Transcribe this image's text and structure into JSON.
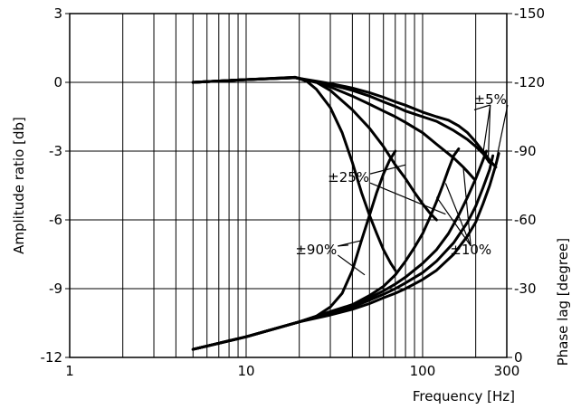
{
  "chart_data": {
    "type": "line",
    "x_scale": "log",
    "grid": true,
    "xlim": [
      1,
      300
    ],
    "ylim_left": [
      -12,
      3
    ],
    "ylim_right": [
      0,
      -150
    ],
    "xlabel": "Frequency [Hz]",
    "ylabel_left": "Amplitude ratio [db]",
    "ylabel_right": "Phase lag [degree]",
    "x_ticks": [
      {
        "value": 1,
        "label": "1"
      },
      {
        "value": 10,
        "label": "10"
      },
      {
        "value": 100,
        "label": "100"
      },
      {
        "value": 300,
        "label": "300"
      }
    ],
    "y_ticks_left": [
      {
        "value": 3,
        "label": "3"
      },
      {
        "value": 0,
        "label": "0"
      },
      {
        "value": -3,
        "label": "-3"
      },
      {
        "value": -6,
        "label": "-6"
      },
      {
        "value": -9,
        "label": "-9"
      },
      {
        "value": -12,
        "label": "-12"
      }
    ],
    "y_ticks_right": [
      {
        "value": -150,
        "label": "-150"
      },
      {
        "value": -120,
        "label": "-120"
      },
      {
        "value": -90,
        "label": "-90"
      },
      {
        "value": -60,
        "label": "-60"
      },
      {
        "value": -30,
        "label": "-30"
      },
      {
        "value": 0,
        "label": "0"
      }
    ],
    "series": [
      {
        "axis": "left",
        "points": [
          [
            5,
            0
          ],
          [
            10,
            0.12
          ],
          [
            15,
            0.18
          ],
          [
            19,
            0.22
          ],
          [
            22,
            0.05
          ],
          [
            25,
            -0.3
          ],
          [
            30,
            -1.1
          ],
          [
            35,
            -2.2
          ],
          [
            40,
            -3.5
          ],
          [
            45,
            -4.8
          ],
          [
            50,
            -5.8
          ],
          [
            55,
            -6.6
          ],
          [
            60,
            -7.3
          ],
          [
            66,
            -7.9
          ],
          [
            70,
            -8.2
          ]
        ]
      },
      {
        "axis": "left",
        "points": [
          [
            5,
            0
          ],
          [
            10,
            0.12
          ],
          [
            19,
            0.22
          ],
          [
            25,
            0
          ],
          [
            30,
            -0.35
          ],
          [
            40,
            -1.2
          ],
          [
            50,
            -2.0
          ],
          [
            60,
            -2.8
          ],
          [
            70,
            -3.6
          ],
          [
            80,
            -4.2
          ],
          [
            90,
            -4.8
          ],
          [
            100,
            -5.3
          ],
          [
            110,
            -5.7
          ],
          [
            120,
            -6.0
          ]
        ]
      },
      {
        "axis": "left",
        "points": [
          [
            5,
            0
          ],
          [
            10,
            0.12
          ],
          [
            19,
            0.2
          ],
          [
            25,
            0
          ],
          [
            30,
            -0.2
          ],
          [
            40,
            -0.6
          ],
          [
            50,
            -0.95
          ],
          [
            60,
            -1.25
          ],
          [
            70,
            -1.5
          ],
          [
            80,
            -1.75
          ],
          [
            100,
            -2.2
          ],
          [
            120,
            -2.7
          ],
          [
            150,
            -3.3
          ],
          [
            170,
            -3.7
          ],
          [
            180,
            -3.9
          ],
          [
            190,
            -4.1
          ],
          [
            195,
            -4.2
          ]
        ]
      },
      {
        "axis": "left",
        "points": [
          [
            5,
            0
          ],
          [
            10,
            0.12
          ],
          [
            19,
            0.2
          ],
          [
            25,
            0
          ],
          [
            30,
            -0.1
          ],
          [
            40,
            -0.35
          ],
          [
            50,
            -0.6
          ],
          [
            60,
            -0.85
          ],
          [
            70,
            -1.05
          ],
          [
            80,
            -1.25
          ],
          [
            100,
            -1.5
          ],
          [
            120,
            -1.7
          ],
          [
            150,
            -2.1
          ],
          [
            180,
            -2.5
          ],
          [
            200,
            -2.8
          ],
          [
            220,
            -3.1
          ],
          [
            240,
            -3.5
          ]
        ]
      },
      {
        "axis": "left",
        "points": [
          [
            5,
            0
          ],
          [
            10,
            0.12
          ],
          [
            19,
            0.2
          ],
          [
            25,
            0.05
          ],
          [
            30,
            -0.05
          ],
          [
            40,
            -0.25
          ],
          [
            50,
            -0.45
          ],
          [
            60,
            -0.65
          ],
          [
            70,
            -0.85
          ],
          [
            80,
            -1.0
          ],
          [
            100,
            -1.3
          ],
          [
            120,
            -1.5
          ],
          [
            140,
            -1.65
          ],
          [
            160,
            -1.9
          ],
          [
            180,
            -2.2
          ],
          [
            200,
            -2.6
          ],
          [
            220,
            -3.0
          ],
          [
            240,
            -3.4
          ],
          [
            260,
            -3.7
          ]
        ]
      },
      {
        "axis": "right",
        "points": [
          [
            5,
            -3.5
          ],
          [
            10,
            -9
          ],
          [
            20,
            -15.5
          ],
          [
            25,
            -18
          ],
          [
            30,
            -22
          ],
          [
            35,
            -28
          ],
          [
            40,
            -38
          ],
          [
            45,
            -51
          ],
          [
            50,
            -62
          ],
          [
            55,
            -72
          ],
          [
            60,
            -80
          ],
          [
            65,
            -86
          ],
          [
            70,
            -90
          ]
        ]
      },
      {
        "axis": "right",
        "points": [
          [
            5,
            -3.5
          ],
          [
            10,
            -9
          ],
          [
            20,
            -15.5
          ],
          [
            30,
            -20
          ],
          [
            40,
            -23
          ],
          [
            50,
            -27
          ],
          [
            60,
            -31
          ],
          [
            70,
            -36
          ],
          [
            80,
            -42
          ],
          [
            90,
            -48
          ],
          [
            100,
            -54
          ],
          [
            110,
            -61
          ],
          [
            120,
            -68
          ],
          [
            130,
            -75
          ],
          [
            140,
            -82
          ],
          [
            150,
            -88
          ],
          [
            160,
            -91
          ]
        ]
      },
      {
        "axis": "right",
        "points": [
          [
            5,
            -3.5
          ],
          [
            10,
            -9
          ],
          [
            20,
            -15.5
          ],
          [
            30,
            -19.5
          ],
          [
            40,
            -23
          ],
          [
            50,
            -26
          ],
          [
            60,
            -29
          ],
          [
            70,
            -32
          ],
          [
            80,
            -35
          ],
          [
            100,
            -41
          ],
          [
            120,
            -47
          ],
          [
            140,
            -54
          ],
          [
            160,
            -62
          ],
          [
            180,
            -70
          ],
          [
            200,
            -78
          ],
          [
            220,
            -86
          ],
          [
            230,
            -90
          ]
        ]
      },
      {
        "axis": "right",
        "points": [
          [
            5,
            -3.5
          ],
          [
            10,
            -9
          ],
          [
            20,
            -15.5
          ],
          [
            30,
            -19
          ],
          [
            40,
            -22
          ],
          [
            50,
            -25
          ],
          [
            60,
            -27.5
          ],
          [
            70,
            -30
          ],
          [
            80,
            -32.5
          ],
          [
            100,
            -37
          ],
          [
            120,
            -42
          ],
          [
            150,
            -50
          ],
          [
            180,
            -59
          ],
          [
            200,
            -66
          ],
          [
            220,
            -74
          ],
          [
            240,
            -82
          ],
          [
            250,
            -88
          ]
        ]
      },
      {
        "axis": "right",
        "points": [
          [
            5,
            -3.5
          ],
          [
            10,
            -9
          ],
          [
            20,
            -15.5
          ],
          [
            30,
            -18.5
          ],
          [
            40,
            -21
          ],
          [
            50,
            -23.5
          ],
          [
            60,
            -26
          ],
          [
            70,
            -28
          ],
          [
            80,
            -30
          ],
          [
            100,
            -34
          ],
          [
            120,
            -38
          ],
          [
            150,
            -45
          ],
          [
            180,
            -53
          ],
          [
            200,
            -59
          ],
          [
            220,
            -67
          ],
          [
            240,
            -75
          ],
          [
            260,
            -84
          ],
          [
            270,
            -89
          ]
        ]
      }
    ],
    "annotations": [
      {
        "text": "±5%",
        "x": 195,
        "y": -0.75,
        "axis": "left",
        "anchor": "start",
        "leaders": [
          [
            196,
            -1.2
          ],
          [
            220,
            -3.1
          ],
          [
            235,
            -3.5
          ],
          [
            255,
            -3.8
          ]
        ]
      },
      {
        "text": "±25%",
        "x": 29,
        "y": -4.15,
        "axis": "left",
        "anchor": "start",
        "leaders": [
          [
            80,
            -3.6
          ],
          [
            135,
            -5.75
          ]
        ]
      },
      {
        "text": "±10%",
        "x": 143,
        "y": -7.3,
        "axis": "left",
        "anchor": "start",
        "leaders": [
          [
            120,
            -5.0
          ],
          [
            135,
            -4.4
          ],
          [
            170,
            -3.7
          ]
        ]
      },
      {
        "text": "±90%",
        "x": 19,
        "y": -7.3,
        "axis": "left",
        "anchor": "start",
        "leaders": [
          [
            45,
            -6.9
          ],
          [
            38,
            -7.1
          ],
          [
            47,
            -8.4
          ]
        ]
      }
    ]
  }
}
